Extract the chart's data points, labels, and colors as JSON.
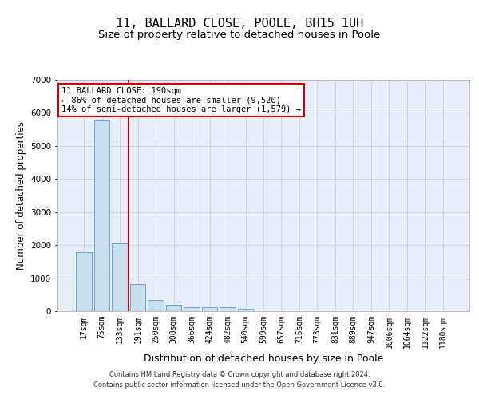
{
  "title1": "11, BALLARD CLOSE, POOLE, BH15 1UH",
  "title2": "Size of property relative to detached houses in Poole",
  "xlabel": "Distribution of detached houses by size in Poole",
  "ylabel": "Number of detached properties",
  "bar_labels": [
    "17sqm",
    "75sqm",
    "133sqm",
    "191sqm",
    "250sqm",
    "308sqm",
    "366sqm",
    "424sqm",
    "482sqm",
    "540sqm",
    "599sqm",
    "657sqm",
    "715sqm",
    "773sqm",
    "831sqm",
    "889sqm",
    "947sqm",
    "1006sqm",
    "1064sqm",
    "1122sqm",
    "1180sqm"
  ],
  "bar_values": [
    1780,
    5780,
    2060,
    820,
    340,
    200,
    120,
    110,
    110,
    80,
    0,
    0,
    0,
    0,
    0,
    0,
    0,
    0,
    0,
    0,
    0
  ],
  "bar_color": "#c8dff0",
  "bar_edge_color": "#5b9bd5",
  "vline_color": "#cc0000",
  "annotation_text": "11 BALLARD CLOSE: 190sqm\n← 86% of detached houses are smaller (9,520)\n14% of semi-detached houses are larger (1,579) →",
  "annotation_box_color": "#ffffff",
  "annotation_box_edge": "#cc0000",
  "ylim": [
    0,
    7000
  ],
  "yticks": [
    0,
    1000,
    2000,
    3000,
    4000,
    5000,
    6000,
    7000
  ],
  "grid_color": "#c8d4e8",
  "background_color": "#e8eef8",
  "footer1": "Contains HM Land Registry data © Crown copyright and database right 2024.",
  "footer2": "Contains public sector information licensed under the Open Government Licence v3.0.",
  "title1_fontsize": 11,
  "title2_fontsize": 9.5,
  "tick_fontsize": 7,
  "ylabel_fontsize": 8.5,
  "xlabel_fontsize": 9,
  "annotation_fontsize": 7.5,
  "footer_fontsize": 6
}
